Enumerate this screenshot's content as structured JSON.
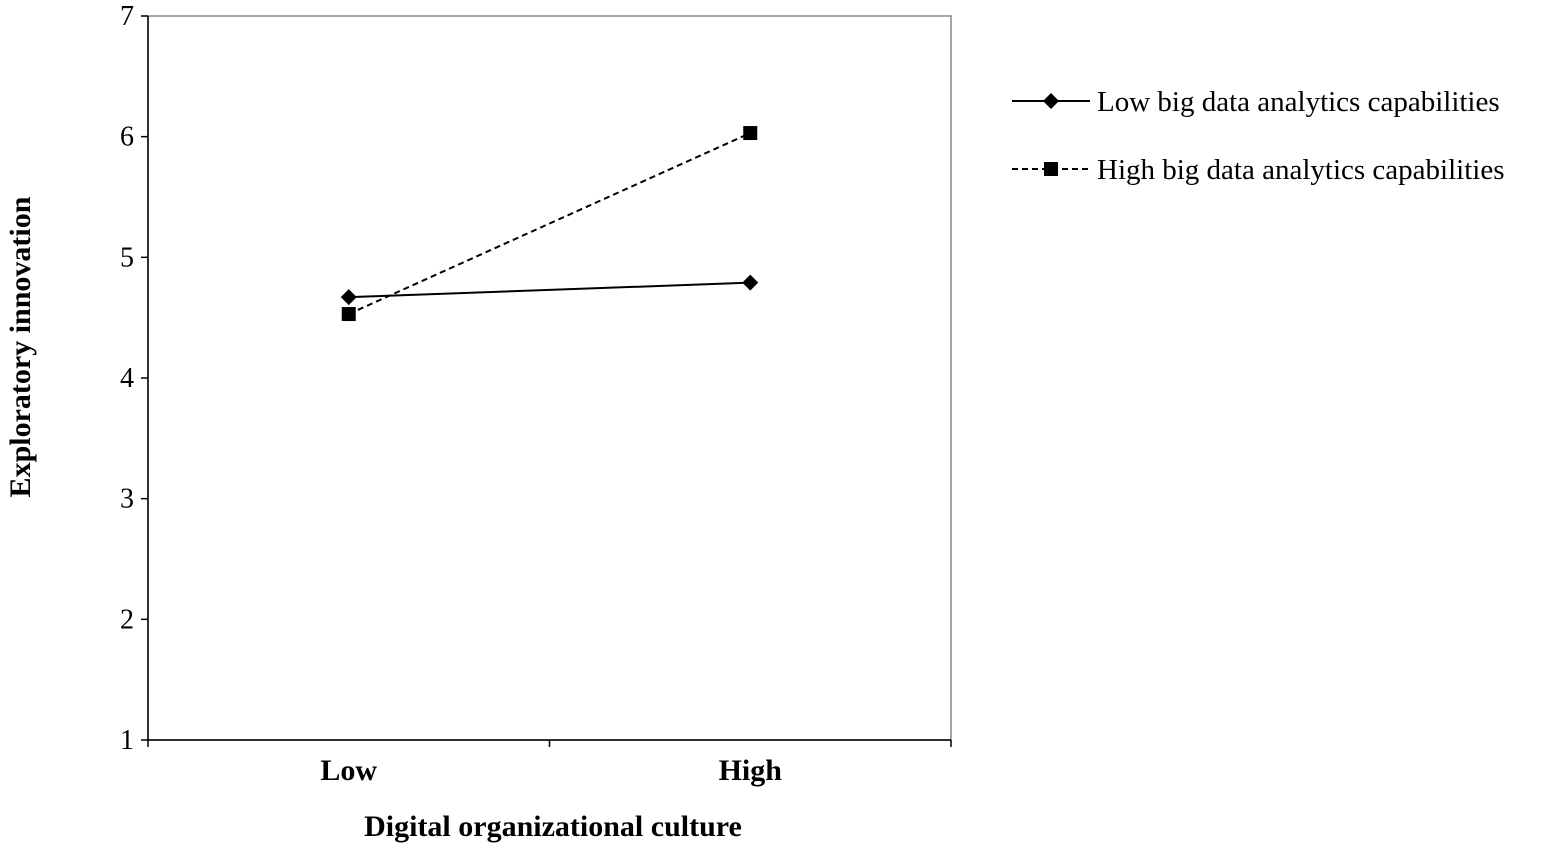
{
  "chart_data": {
    "type": "line",
    "title": "",
    "xlabel": "Digital organizational culture",
    "ylabel": "Exploratory innovation",
    "categories": [
      "Low",
      "High"
    ],
    "ylim": [
      1,
      7
    ],
    "yticks": [
      "1",
      "2",
      "3",
      "4",
      "5",
      "6",
      "7"
    ],
    "grid": false,
    "legend_position": "right",
    "series": [
      {
        "name": "Low big data analytics capabilities",
        "values": [
          4.67,
          4.79
        ],
        "line": "solid",
        "marker": "diamond",
        "color": "#000000"
      },
      {
        "name": "High big data analytics capabilities",
        "values": [
          4.53,
          6.03
        ],
        "line": "dashed",
        "marker": "square",
        "color": "#000000"
      }
    ]
  }
}
